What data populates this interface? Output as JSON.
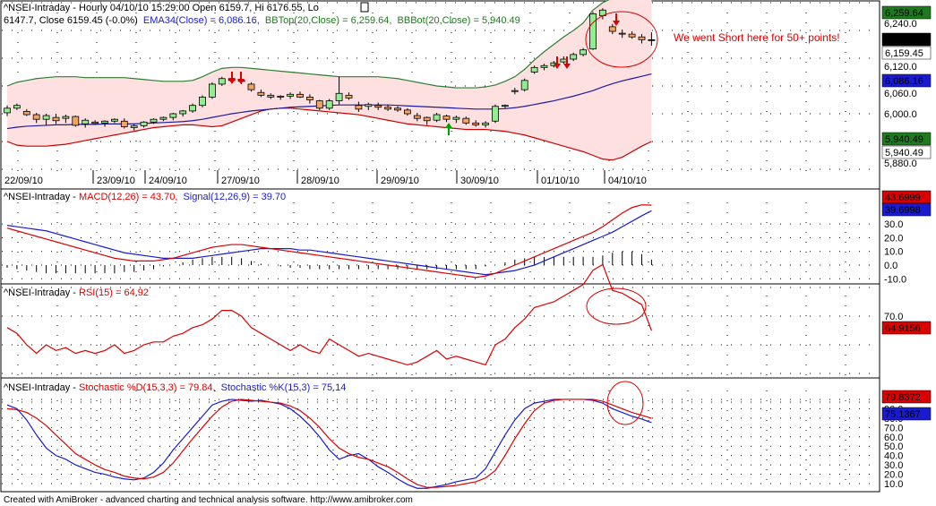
{
  "title_line": "^NSEI-Intraday - Hourly 04/10/10 15:29:00 Open 6159.7, Hi 6176.55, Lo",
  "title_line2": "6147.7, Close 6159.45 (-0.0%)",
  "ind_ema": "EMA34(Close) = 6,086.16,",
  "ind_bbtop": "BBTop(20,Close) = 6,259.64,",
  "ind_bbbot": "BBBot(20,Close) = 5,940.49",
  "annotation": "We went Short here for 50+ points!",
  "footer": "Created with AmiBroker - advanced charting and technical analysis software. http://www.amibroker.com",
  "colors": {
    "bull": "#90ee90",
    "bear": "#f4a460",
    "band_fill": "#ffe0e0",
    "bb_top": "#2e7d32",
    "bb_bot": "#cc0000",
    "ema": "#1a1aa6",
    "macd": "#dd0000",
    "signal": "#1a1ad0",
    "rsi": "#dd0000",
    "stoch_d": "#dd0000",
    "stoch_k": "#1a1ad0",
    "arrow_down": "#dd0000",
    "arrow_up": "#00a000"
  },
  "price_panel": {
    "y_ticks": [
      "6,240.0",
      "6,120.0",
      "6,060.0",
      "6,000.0",
      "5,880.0"
    ],
    "badges": [
      {
        "text": "6,259.64",
        "bg": "#1e7a1e",
        "fg": "#ffffff"
      },
      {
        "text": "6,159.45",
        "bg": "#000000",
        "fg": "#ffffff"
      },
      {
        "text": "6,159.45",
        "bg": "#ffffff",
        "fg": "#000000"
      },
      {
        "text": "6,086.16",
        "bg": "#1a1ad0",
        "fg": "#ffffff"
      },
      {
        "text": "5,940.49",
        "bg": "#1e7a1e",
        "fg": "#ffffff"
      },
      {
        "text": "5,940.49",
        "bg": "#ffffff",
        "fg": "#000000"
      }
    ],
    "dates": [
      "22/09/10",
      "23/09/10",
      "24/09/10",
      "27/09/10",
      "28/09/10",
      "29/09/10",
      "30/09/10",
      "01/10/10",
      "04/10/10"
    ]
  },
  "macd_panel": {
    "label_prefix": "^NSEI-Intraday - ",
    "macd_label": "MACD(12,26) = 43.70,",
    "signal_label": "Signal(12,26,9) = 39.70",
    "y_ticks": [
      "30.0",
      "20.0",
      "10.0",
      "0.0",
      "-10.0"
    ],
    "badges": [
      {
        "text": "43.6999",
        "bg": "#dd0000",
        "fg": "#ffffff"
      },
      {
        "text": "39.6998",
        "bg": "#1a1ad0",
        "fg": "#ffffff"
      }
    ]
  },
  "rsi_panel": {
    "label_prefix": "^NSEI-Intraday - ",
    "rsi_label": "RSI(15) = 64.92",
    "y_ticks": [
      "70.0"
    ],
    "badges": [
      {
        "text": "64.9156",
        "bg": "#dd0000",
        "fg": "#ffffff"
      }
    ]
  },
  "stoch_panel": {
    "label_prefix": "^NSEI-Intraday - ",
    "d_label": "Stochastic %D(15,3,3) = 79.84,",
    "k_label": "Stochastic %K(15,3) = 75.14",
    "y_ticks": [
      "100.0",
      "90.0",
      "80.0",
      "70.0",
      "60.0",
      "50.0",
      "40.0",
      "30.0",
      "20.0",
      "10.0"
    ],
    "badges": [
      {
        "text": "79.8372",
        "bg": "#dd0000",
        "fg": "#ffffff"
      },
      {
        "text": "75.1367",
        "bg": "#1a1ad0",
        "fg": "#ffffff"
      }
    ]
  },
  "chart_data": [
    {
      "type": "candlestick",
      "candles": [
        [
          6002,
          6018,
          5995,
          6012
        ],
        [
          6012,
          6022,
          6008,
          6018
        ],
        [
          6005,
          6010,
          5995,
          5998
        ],
        [
          5998,
          6002,
          5980,
          5988
        ],
        [
          5988,
          6000,
          5975,
          5996
        ],
        [
          5992,
          6000,
          5978,
          5985
        ],
        [
          5990,
          5998,
          5980,
          5994
        ],
        [
          5994,
          5996,
          5972,
          5975
        ],
        [
          5978,
          5990,
          5970,
          5986
        ],
        [
          5982,
          5986,
          5976,
          5979
        ],
        [
          5980,
          5986,
          5972,
          5984
        ],
        [
          5984,
          5990,
          5980,
          5988
        ],
        [
          5984,
          5990,
          5968,
          5972
        ],
        [
          5970,
          5978,
          5964,
          5974
        ],
        [
          5974,
          5984,
          5970,
          5982
        ],
        [
          5982,
          5990,
          5978,
          5988
        ],
        [
          5988,
          5994,
          5984,
          5992
        ],
        [
          5992,
          6002,
          5986,
          6000
        ],
        [
          6000,
          6008,
          5994,
          6006
        ],
        [
          6006,
          6022,
          6002,
          6018
        ],
        [
          6018,
          6040,
          6014,
          6036
        ],
        [
          6036,
          6068,
          6032,
          6064
        ],
        [
          6064,
          6080,
          6060,
          6076
        ],
        [
          6076,
          6080,
          6070,
          6072
        ],
        [
          6072,
          6076,
          6064,
          6070
        ],
        [
          6064,
          6068,
          6048,
          6052
        ],
        [
          6046,
          6052,
          6036,
          6040
        ],
        [
          6040,
          6044,
          6032,
          6036
        ],
        [
          6036,
          6040,
          6030,
          6038
        ],
        [
          6038,
          6046,
          6032,
          6042
        ],
        [
          6042,
          6048,
          6034,
          6036
        ],
        [
          6036,
          6042,
          6022,
          6030
        ],
        [
          6028,
          6030,
          6008,
          6012
        ],
        [
          6012,
          6032,
          6008,
          6028
        ],
        [
          6028,
          6080,
          6020,
          6044
        ],
        [
          6040,
          6046,
          6030,
          6034
        ],
        [
          6018,
          6026,
          6004,
          6010
        ],
        [
          6016,
          6024,
          6008,
          6020
        ],
        [
          6018,
          6024,
          6008,
          6014
        ],
        [
          6014,
          6020,
          6006,
          6010
        ],
        [
          6012,
          6016,
          6004,
          6008
        ],
        [
          6008,
          6012,
          5996,
          6000
        ],
        [
          5996,
          6002,
          5984,
          5990
        ],
        [
          5992,
          5994,
          5976,
          5985
        ],
        [
          5986,
          6002,
          5982,
          5998
        ],
        [
          5995,
          5998,
          5982,
          5988
        ],
        [
          5988,
          5996,
          5980,
          5992
        ],
        [
          5990,
          5994,
          5976,
          5980
        ],
        [
          5980,
          5986,
          5972,
          5976
        ],
        [
          5976,
          5984,
          5970,
          5980
        ],
        [
          5984,
          6020,
          5980,
          6016
        ],
        [
          6016,
          6020,
          6012,
          6018
        ],
        [
          6048,
          6056,
          6042,
          6050
        ],
        [
          6052,
          6076,
          6048,
          6072
        ],
        [
          6090,
          6104,
          6086,
          6100
        ],
        [
          6100,
          6108,
          6094,
          6104
        ],
        [
          6104,
          6114,
          6100,
          6110
        ],
        [
          6112,
          6124,
          6108,
          6118
        ],
        [
          6118,
          6132,
          6114,
          6128
        ],
        [
          6128,
          6142,
          6124,
          6138
        ],
        [
          6140,
          6220,
          6138,
          6216
        ],
        [
          6212,
          6228,
          6204,
          6224
        ],
        [
          6188,
          6194,
          6172,
          6178
        ],
        [
          6174,
          6182,
          6164,
          6172
        ],
        [
          6172,
          6178,
          6162,
          6166
        ],
        [
          6166,
          6172,
          6152,
          6160
        ],
        [
          6160,
          6176,
          6147,
          6159
        ]
      ],
      "bb_top": [
        6060,
        6068,
        6072,
        6076,
        6078,
        6080,
        6080,
        6080,
        6078,
        6078,
        6078,
        6078,
        6078,
        6076,
        6074,
        6072,
        6070,
        6070,
        6070,
        6072,
        6080,
        6090,
        6098,
        6100,
        6100,
        6098,
        6096,
        6094,
        6092,
        6090,
        6088,
        6086,
        6084,
        6082,
        6080,
        6080,
        6080,
        6080,
        6080,
        6078,
        6076,
        6072,
        6068,
        6064,
        6060,
        6058,
        6056,
        6056,
        6056,
        6058,
        6062,
        6070,
        6080,
        6096,
        6116,
        6134,
        6150,
        6166,
        6180,
        6196,
        6224,
        6240,
        6250,
        6254,
        6256,
        6258,
        6260
      ],
      "bb_bot": [
        5940,
        5932,
        5930,
        5930,
        5930,
        5932,
        5934,
        5938,
        5942,
        5946,
        5950,
        5954,
        5958,
        5962,
        5966,
        5970,
        5972,
        5974,
        5976,
        5976,
        5974,
        5972,
        5974,
        5982,
        5990,
        5998,
        6006,
        6010,
        6012,
        6012,
        6010,
        6008,
        6006,
        6004,
        6002,
        6000,
        5998,
        5994,
        5990,
        5986,
        5982,
        5978,
        5976,
        5974,
        5972,
        5970,
        5968,
        5966,
        5966,
        5966,
        5964,
        5962,
        5958,
        5954,
        5948,
        5942,
        5936,
        5930,
        5924,
        5918,
        5910,
        5902,
        5900,
        5906,
        5918,
        5930,
        5940
      ],
      "ema": [
        5968,
        5971,
        5973,
        5974,
        5975,
        5976,
        5976,
        5977,
        5977,
        5977,
        5978,
        5978,
        5978,
        5978,
        5979,
        5980,
        5981,
        5982,
        5983,
        5985,
        5988,
        5992,
        5996,
        6000,
        6003,
        6006,
        6008,
        6010,
        6012,
        6014,
        6015,
        6016,
        6017,
        6018,
        6019,
        6019,
        6019,
        6019,
        6019,
        6019,
        6018,
        6017,
        6016,
        6015,
        6014,
        6013,
        6012,
        6011,
        6010,
        6010,
        6010,
        6011,
        6013,
        6016,
        6020,
        6024,
        6028,
        6033,
        6038,
        6044,
        6050,
        6058,
        6065,
        6071,
        6076,
        6081,
        6086
      ]
    },
    {
      "type": "line",
      "macd": [
        27,
        25,
        23,
        21,
        19,
        17,
        15,
        13,
        11,
        9,
        7,
        5,
        4,
        3,
        3,
        3,
        4,
        5,
        7,
        9,
        11,
        13,
        14,
        15,
        15,
        14,
        13,
        12,
        11,
        10,
        9,
        8,
        7,
        6,
        5,
        4,
        3,
        2,
        1,
        0,
        -1,
        -2,
        -3,
        -4,
        -5,
        -6,
        -7,
        -8,
        -9,
        -8,
        -6,
        -3,
        0,
        3,
        6,
        9,
        12,
        15,
        18,
        21,
        24,
        28,
        33,
        38,
        42,
        44,
        43.7
      ],
      "signal": [
        29,
        28,
        27,
        26,
        25,
        23,
        21,
        19,
        17,
        15,
        13,
        11,
        9,
        8,
        7,
        6,
        5,
        5,
        5,
        5,
        6,
        7,
        8,
        9,
        10,
        11,
        12,
        12,
        12,
        12,
        11,
        11,
        10,
        9,
        8,
        7,
        6,
        5,
        4,
        3,
        2,
        1,
        0,
        -1,
        -2,
        -3,
        -4,
        -5,
        -6,
        -7,
        -6,
        -5,
        -4,
        -2,
        0,
        3,
        6,
        9,
        12,
        15,
        18,
        21,
        24,
        28,
        32,
        36,
        39.7
      ]
    },
    {
      "type": "line",
      "rsi": [
        66,
        64,
        60,
        57,
        60,
        58,
        59,
        57,
        58,
        57,
        58,
        60,
        57,
        58,
        60,
        61,
        61,
        63,
        64,
        66,
        67,
        69,
        72,
        72,
        70,
        66,
        64,
        62,
        60,
        58,
        60,
        58,
        57,
        62,
        60,
        58,
        56,
        57,
        56,
        55,
        54,
        53,
        54,
        56,
        58,
        55,
        56,
        55,
        54,
        53,
        60,
        62,
        66,
        69,
        73,
        74,
        75,
        77,
        79,
        81,
        86,
        88,
        79,
        78,
        76,
        74,
        64.92
      ]
    },
    {
      "type": "line",
      "stoch_d": [
        90,
        89,
        86,
        80,
        72,
        62,
        52,
        42,
        36,
        30,
        25,
        22,
        18,
        16,
        15,
        17,
        22,
        32,
        45,
        58,
        70,
        82,
        92,
        98,
        100,
        99,
        98,
        97,
        96,
        93,
        88,
        80,
        70,
        58,
        48,
        42,
        38,
        36,
        32,
        28,
        22,
        15,
        9,
        6,
        6,
        7,
        8,
        10,
        12,
        16,
        24,
        40,
        58,
        74,
        88,
        96,
        99,
        100,
        100,
        100,
        100,
        98,
        94,
        90,
        86,
        83,
        79.84
      ],
      "stoch_k": [
        94,
        90,
        78,
        62,
        48,
        40,
        36,
        30,
        26,
        22,
        20,
        17,
        15,
        14,
        16,
        22,
        32,
        46,
        58,
        70,
        82,
        94,
        98,
        100,
        99,
        98,
        99,
        97,
        95,
        90,
        82,
        72,
        60,
        46,
        36,
        40,
        42,
        36,
        28,
        22,
        15,
        9,
        5,
        5,
        7,
        9,
        12,
        14,
        16,
        26,
        44,
        62,
        78,
        90,
        96,
        98,
        100,
        100,
        100,
        100,
        99,
        96,
        90,
        86,
        82,
        79,
        75.14
      ]
    }
  ]
}
